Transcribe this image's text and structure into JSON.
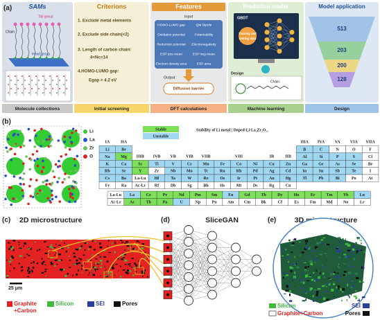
{
  "panel_a": {
    "label": "(a)",
    "sams": {
      "title": "SAMs",
      "tail": "Tail group",
      "chain": "Chain",
      "head": "Head group"
    },
    "criterions": {
      "title": "Criterions",
      "items": [
        "1. Exclude metal elements",
        "2. Exclude side chain(<2)",
        "3. Length of carbon chain:",
        "4<Nc<14",
        "4.HOMO-LUMO gap:",
        "Egap > 4.2 eV"
      ]
    },
    "features": {
      "title": "Features",
      "input": "Input",
      "items": [
        "HOMO-LUMO gap",
        "QM Dipole",
        "Oxidation potential",
        "Polarizability",
        "Reduction potential",
        "Electronegativity",
        "ESP pos mean",
        "ESP neg mean",
        "Electron density area",
        "ESP area"
      ],
      "output": "Output",
      "target": "Diffusion barrier"
    },
    "prediction": {
      "title": "Prediction model",
      "model": "GBDT",
      "data": [
        "Training and",
        "testing data"
      ],
      "design": "Design",
      "chain": "Chain"
    },
    "application": {
      "title": "Model application",
      "counts": [
        513,
        203,
        200,
        128
      ]
    },
    "stages": [
      "Molecule collections",
      "Initial screening",
      "DFT calculations",
      "Machine learning",
      "Design"
    ]
  },
  "panel_b": {
    "label": "(b)",
    "atoms": [
      {
        "label": "Li",
        "color": "#33cc33"
      },
      {
        "label": "La",
        "color": "#2b4fc4"
      },
      {
        "label": "Zr",
        "color": "#6fbf5f"
      },
      {
        "label": "O",
        "color": "#dd2222"
      }
    ],
    "legend": [
      {
        "label": "Stable",
        "color": "#7ee05a"
      },
      {
        "label": "Unstable",
        "color": "#9fd6f2"
      }
    ],
    "title": "Stability of Li metal | Doped-Li-La₃Zr₂O₁₂",
    "table": [
      [
        "IA",
        "IIA",
        null,
        null,
        null,
        null,
        null,
        null,
        null,
        null,
        null,
        null,
        "IIIA",
        "IVA",
        "VA",
        "VIA",
        "VIIA"
      ],
      [
        [
          "Li",
          "#9fd6f2"
        ],
        [
          "Be",
          "#9fd6f2"
        ],
        null,
        null,
        null,
        null,
        null,
        null,
        null,
        null,
        null,
        null,
        [
          "B",
          "#9fd6f2"
        ],
        [
          "C",
          "#9fd6f2"
        ],
        [
          "N",
          "#ffffff"
        ],
        [
          "O",
          "#ffffff"
        ],
        [
          "F",
          "#ffffff"
        ]
      ],
      [
        [
          "Na",
          "#9fd6f2"
        ],
        [
          "Mg",
          "#7ee05a"
        ],
        "IIIB",
        "IVB",
        "VB",
        "VIB",
        "VIIB",
        null,
        "VIII",
        null,
        "IB",
        "IIB",
        [
          "Al",
          "#9fd6f2"
        ],
        [
          "Si",
          "#9fd6f2"
        ],
        [
          "P",
          "#9fd6f2"
        ],
        [
          "S",
          "#9fd6f2"
        ],
        [
          "Cl",
          "#ffffff"
        ]
      ],
      [
        [
          "K",
          "#9fd6f2"
        ],
        [
          "Ca",
          "#9fd6f2"
        ],
        [
          "Sc",
          "#7ee05a"
        ],
        [
          "Ti",
          "#9fd6f2"
        ],
        [
          "V",
          "#9fd6f2"
        ],
        [
          "Cr",
          "#9fd6f2"
        ],
        [
          "Mn",
          "#9fd6f2"
        ],
        [
          "Fe",
          "#9fd6f2"
        ],
        [
          "Co",
          "#9fd6f2"
        ],
        [
          "Ni",
          "#9fd6f2"
        ],
        [
          "Cu",
          "#9fd6f2"
        ],
        [
          "Zn",
          "#9fd6f2"
        ],
        [
          "Ga",
          "#9fd6f2"
        ],
        [
          "Ge",
          "#9fd6f2"
        ],
        [
          "As",
          "#9fd6f2"
        ],
        [
          "Se",
          "#9fd6f2"
        ],
        [
          "Br",
          "#ffffff"
        ]
      ],
      [
        [
          "Rb",
          "#9fd6f2"
        ],
        [
          "Sr",
          "#9fd6f2"
        ],
        [
          "Y",
          "#7ee05a"
        ],
        [
          "Zr",
          "#ffffff"
        ],
        [
          "Nb",
          "#9fd6f2"
        ],
        [
          "Mo",
          "#9fd6f2"
        ],
        [
          "Tc",
          "#9fd6f2"
        ],
        [
          "Ru",
          "#9fd6f2"
        ],
        [
          "Rh",
          "#9fd6f2"
        ],
        [
          "Pd",
          "#9fd6f2"
        ],
        [
          "Ag",
          "#9fd6f2"
        ],
        [
          "Cd",
          "#9fd6f2"
        ],
        [
          "In",
          "#9fd6f2"
        ],
        [
          "Sn",
          "#9fd6f2"
        ],
        [
          "Sb",
          "#9fd6f2"
        ],
        [
          "Te",
          "#9fd6f2"
        ],
        [
          "I",
          "#ffffff"
        ]
      ],
      [
        [
          "Cs",
          "#9fd6f2"
        ],
        [
          "Ba",
          "#9fd6f2"
        ],
        [
          "La-Lu",
          "#ffffff"
        ],
        [
          "Hf",
          "#9fd6f2"
        ],
        [
          "Ta",
          "#9fd6f2"
        ],
        [
          "W",
          "#9fd6f2"
        ],
        [
          "Re",
          "#9fd6f2"
        ],
        [
          "Os",
          "#9fd6f2"
        ],
        [
          "Ir",
          "#9fd6f2"
        ],
        [
          "Pt",
          "#9fd6f2"
        ],
        [
          "Au",
          "#9fd6f2"
        ],
        [
          "Hg",
          "#9fd6f2"
        ],
        [
          "Tl",
          "#9fd6f2"
        ],
        [
          "Pb",
          "#9fd6f2"
        ],
        [
          "Bi",
          "#9fd6f2"
        ],
        [
          "Po",
          "#ffffff"
        ],
        [
          "At",
          "#ffffff"
        ]
      ],
      [
        [
          "Fr",
          "#ffffff"
        ],
        [
          "Ra",
          "#ffffff"
        ],
        [
          "Ac-Lr",
          "#ffffff"
        ],
        [
          "Rf",
          "#ffffff"
        ],
        [
          "Db",
          "#ffffff"
        ],
        [
          "Sg",
          "#ffffff"
        ],
        [
          "Bh",
          "#ffffff"
        ],
        [
          "Hs",
          "#ffffff"
        ],
        [
          "Mt",
          "#ffffff"
        ],
        [
          "Ds",
          "#ffffff"
        ],
        [
          "Rg",
          "#ffffff"
        ],
        [
          "Cn",
          "#ffffff"
        ],
        null,
        null,
        null,
        null,
        null
      ]
    ],
    "f_block": [
      [
        [
          "La-Lu",
          "#ffffff"
        ],
        [
          "La",
          "#9fd6f2"
        ],
        [
          "Ce",
          "#7ee05a"
        ],
        [
          "Pr",
          "#7ee05a"
        ],
        [
          "Nd",
          "#7ee05a"
        ],
        [
          "Pm",
          "#7ee05a"
        ],
        [
          "Sm",
          "#7ee05a"
        ],
        [
          "Eu",
          "#9fd6f2"
        ],
        [
          "Gd",
          "#7ee05a"
        ],
        [
          "Tb",
          "#7ee05a"
        ],
        [
          "Dy",
          "#7ee05a"
        ],
        [
          "Ho",
          "#7ee05a"
        ],
        [
          "Er",
          "#7ee05a"
        ],
        [
          "Tm",
          "#7ee05a"
        ],
        [
          "Yb",
          "#7ee05a"
        ],
        [
          "Lu",
          "#9fd6f2"
        ]
      ],
      [
        [
          "Ac-Lr",
          "#ffffff"
        ],
        [
          "Ac",
          "#7ee05a"
        ],
        [
          "Th",
          "#7ee05a"
        ],
        [
          "Pa",
          "#7ee05a"
        ],
        [
          "U",
          "#9fd6f2"
        ],
        [
          "Np",
          "#ffffff"
        ],
        [
          "Pu",
          "#ffffff"
        ],
        [
          "Am",
          "#ffffff"
        ],
        [
          "Cm",
          "#ffffff"
        ],
        [
          "Bk",
          "#ffffff"
        ],
        [
          "Cf",
          "#ffffff"
        ],
        [
          "Es",
          "#ffffff"
        ],
        [
          "Fm",
          "#ffffff"
        ],
        [
          "Md",
          "#ffffff"
        ],
        [
          "No",
          "#ffffff"
        ],
        [
          "Lr",
          "#ffffff"
        ]
      ]
    ]
  },
  "panel_c": {
    "label": "(c)",
    "title": "2D microstructure",
    "scale": "25 μm",
    "legend": [
      {
        "label": "Graphite",
        "color": "#e52222"
      },
      {
        "label": "+Carbon",
        "color": "#e52222"
      },
      {
        "label": "Silicon",
        "color": "#3fb83f"
      },
      {
        "label": "SEI",
        "color": "#2b3f9a"
      },
      {
        "label": "Pores",
        "color": "#111111"
      }
    ]
  },
  "panel_d": {
    "label": "(d)",
    "title": "SliceGAN"
  },
  "panel_e": {
    "label": "(e)",
    "title": "3D microstructure",
    "legend": [
      {
        "label": "Silicon",
        "color": "#3fb83f"
      },
      {
        "label": "SEI",
        "color": "#2b3f9a"
      },
      {
        "label": "Graphite+Carbon",
        "color": "#e52222"
      },
      {
        "label": "Pores",
        "color": "#111111"
      }
    ]
  }
}
